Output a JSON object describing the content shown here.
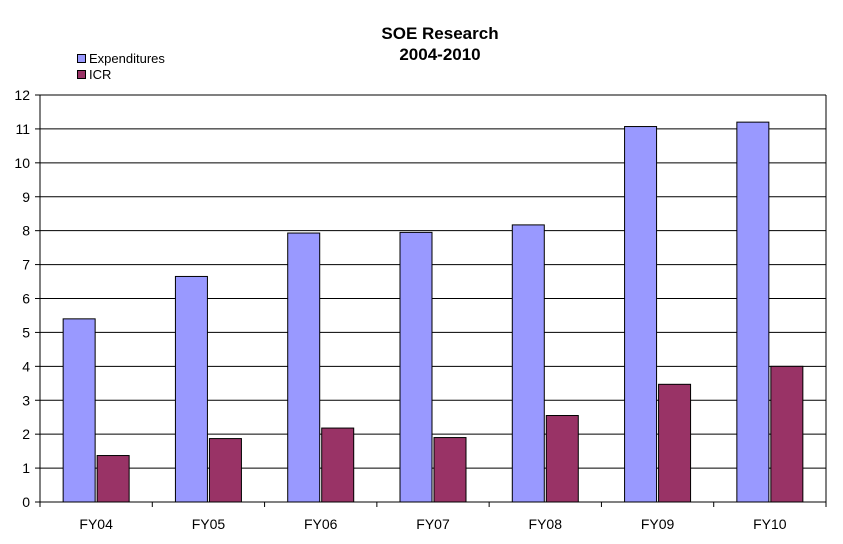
{
  "chart_data": {
    "type": "bar",
    "title": "SOE Research",
    "subtitle": "2004-2010",
    "categories": [
      "FY04",
      "FY05",
      "FY06",
      "FY07",
      "FY08",
      "FY09",
      "FY10"
    ],
    "series": [
      {
        "name": "Expenditures",
        "color": "#9999ff",
        "values": [
          5.4,
          6.65,
          7.93,
          7.95,
          8.17,
          11.07,
          11.2
        ]
      },
      {
        "name": "ICR",
        "color": "#993366",
        "values": [
          1.37,
          1.87,
          2.18,
          1.9,
          2.55,
          3.47,
          4.0
        ]
      }
    ],
    "ylim": [
      0,
      12
    ],
    "yticks": [
      0,
      1,
      2,
      3,
      4,
      5,
      6,
      7,
      8,
      9,
      10,
      11,
      12
    ],
    "grid": true,
    "legend_position": "top-left"
  }
}
